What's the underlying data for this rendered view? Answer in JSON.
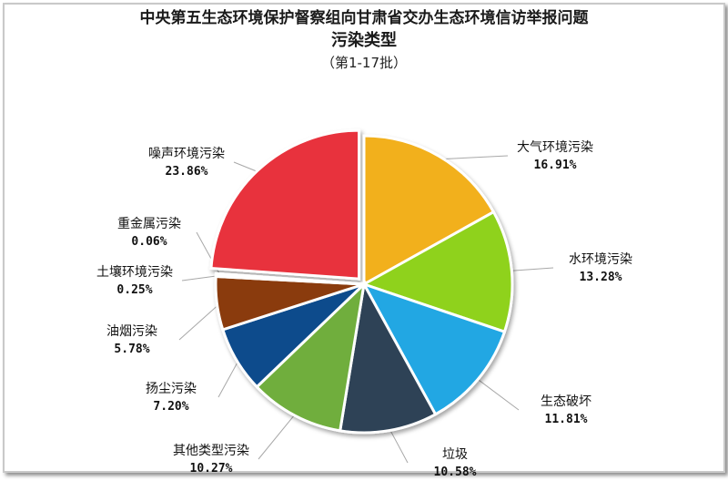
{
  "chart_data": {
    "type": "pie",
    "title": "中央第五生态环境保护督察组向甘肃省交办生态环境信访举报问题",
    "subtitle": "污染类型",
    "batch_note": "（第1-17批）",
    "slices": [
      {
        "name": "大气环境污染",
        "value": 16.91,
        "label": "16.91%",
        "color": "#f2b01e"
      },
      {
        "name": "水环境污染",
        "value": 13.28,
        "label": "13.28%",
        "color": "#8fd21f"
      },
      {
        "name": "生态破坏",
        "value": 11.81,
        "label": "11.81%",
        "color": "#22a7e3"
      },
      {
        "name": "垃圾",
        "value": 10.58,
        "label": "10.58%",
        "color": "#2d4357"
      },
      {
        "name": "其他类型污染",
        "value": 10.27,
        "label": "10.27%",
        "color": "#6fae3c"
      },
      {
        "name": "扬尘污染",
        "value": 7.2,
        "label": "7.20%",
        "color": "#0f4c8c"
      },
      {
        "name": "油烟污染",
        "value": 5.78,
        "label": "5.78%",
        "color": "#8a3b0a"
      },
      {
        "name": "土壤环境污染",
        "value": 0.25,
        "label": "0.25%",
        "color": "#6b6b6b"
      },
      {
        "name": "重金属污染",
        "value": 0.06,
        "label": "0.06%",
        "color": "#3a6e1f"
      },
      {
        "name": "噪声环境污染",
        "value": 23.86,
        "label": "23.86%",
        "color": "#e8323c"
      }
    ]
  }
}
